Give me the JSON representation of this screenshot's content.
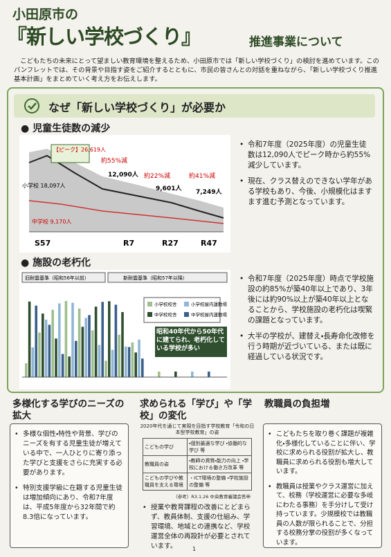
{
  "header": {
    "title_line1": "小田原市の",
    "title_main": "『新しい学校づくり』",
    "title_sub": "推進事業について",
    "intro": "こどもたちの未来にとって望ましい教育環境を整えるため、小田原市では「新しい学校づくり」の検討を進めています。このパンフレットでは、その背景や目指す姿をご紹介するとともに、市民の皆さんとの対話を重ねながら、「新しい学校づくり推進基本計画」をまとめていく考え方をお伝えします。"
  },
  "section": {
    "heading": "なぜ「新しい学校づくり」が必要か",
    "students": {
      "title": "児童生徒数の減少",
      "peak": "【ピーク】26,619人",
      "drop1": "約55%減",
      "now": "12,090人",
      "drop2": "約22%減",
      "r27": "9,601人",
      "drop3": "約41%減",
      "r47": "7,249人",
      "elementary": "小学校 18,097人",
      "junior": "中学校 9,170人",
      "x_labels": [
        "S57",
        "R7",
        "R27",
        "R47"
      ],
      "bullets": [
        "令和7年度（2025年度）の児童生徒数は12,090人でピーク時から約55%減少しています。",
        "現在、クラス替えのできない学年がある学校もあり、今後、小規模化はますます進む予測となっています。"
      ]
    },
    "facilities": {
      "title": "施設の老朽化",
      "old_standard": "旧耐震基準（昭和56年以前）",
      "new_standard": "新耐震基準（昭和57年以降）",
      "legend": [
        "小学校校舎",
        "小学校屋内運動場",
        "中学校校舎",
        "中学校屋内運動場"
      ],
      "callout": "昭和40年代から50年代に建てられ、老朽化している学校が多い",
      "bullets": [
        "令和7年度（2025年度）時点で学校施設の約85%が築40年以上であり、3年後には約90%以上が築40年以上となることから、学校施設の老朽化は喫緊の課題となっています。",
        "大半の学校が、建替え・長寿命化改修を行う時期が近づいている、または既に経過している状況です。"
      ]
    }
  },
  "columns": [
    {
      "title": "多様化する学びのニーズの拡大",
      "bullets": [
        "多様な個性・特性や背景、学びのニーズを有する児童生徒が増えている中で、一人ひとりに寄り添った学びと支援をさらに充実する必要があります。",
        "特別支援学級に在籍する児童生徒は増加傾向にあり、令和7年度は、平成5年度から32年間で約8.3倍になっています。"
      ]
    },
    {
      "title": "求められる「学び」や「学校」の変化",
      "table_caption": "2020年代を通じて実現を目指す学校教育「令和の日本型学校教育」の姿",
      "table": [
        [
          "こどもの学び",
          "・個別最適な学び ・協働的な学び 等"
        ],
        [
          "教職員の姿",
          "・教師の資質・能力の向上 ・学校における働き方改革 等"
        ],
        [
          "こどもの学びや教職員を支える環境",
          "・ICT環境の整備 ・学校施設の整備 等"
        ]
      ],
      "source": "（参考）R3.1.26 中央教育審議会答申",
      "bullets": [
        "授業や教育課程の改善にとどまらず、教員体制、支援の仕組み、学習環境、地域との連携など、学校運営全体の再設計が必要とされています。"
      ]
    },
    {
      "title": "教職員の負担増",
      "bullets": [
        "こどもたちを取り巻く課題が複雑化・多様化していることに伴い、学校に求められる役割が拡大し、教職員に求められる役割も増大しています。",
        "教職員は授業やクラス運営に加えて、校務（学校運営に必要な多岐にわたる事務）を手分けして受け持っています。少規模校では教職員の人数が限られることで、分担する校務分掌の役割が多くなっています。"
      ]
    }
  ],
  "page_number": "1"
}
